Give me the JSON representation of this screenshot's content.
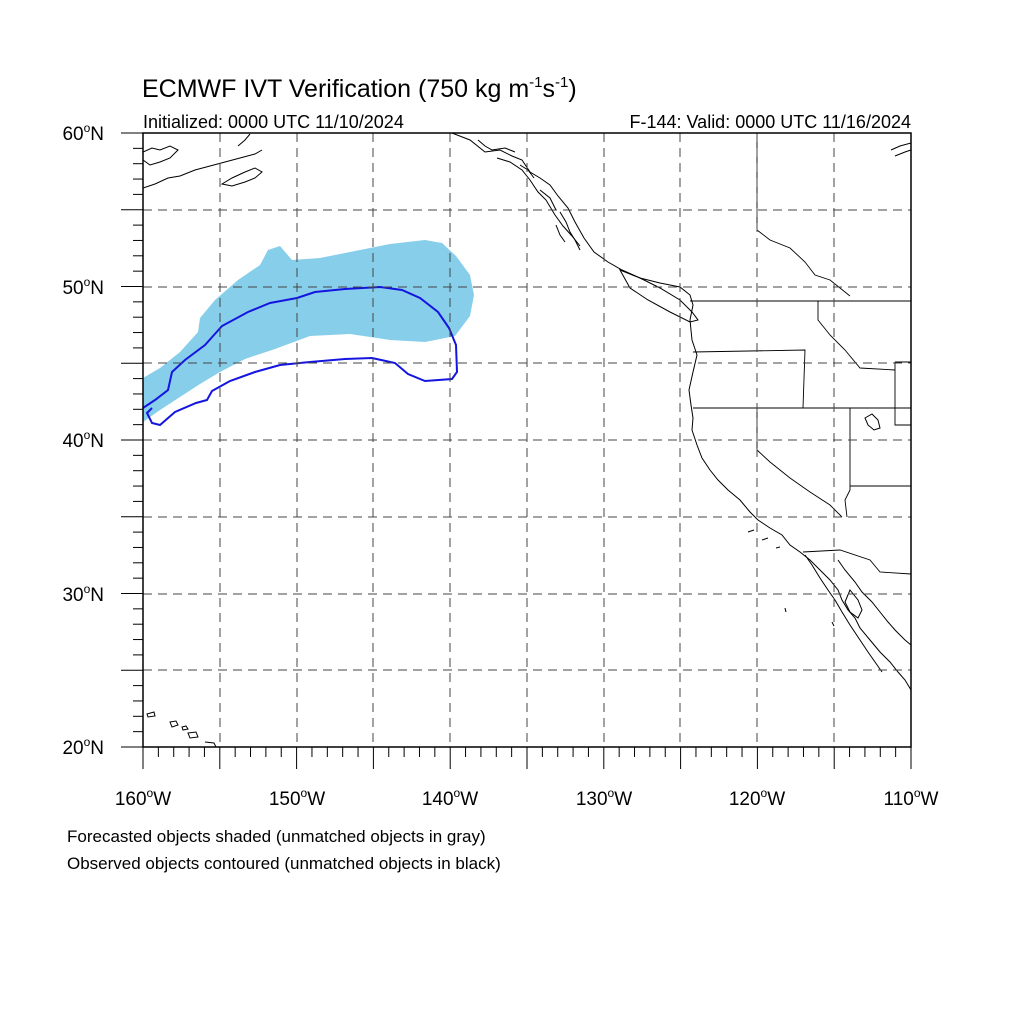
{
  "map": {
    "title_main": "ECMWF IVT Verification (750 kg m",
    "title_sup1": "-1",
    "title_mid": "s",
    "title_sup2": "-1",
    "title_end": ")",
    "initialized": "Initialized: 0000 UTC 11/10/2024",
    "valid": "F-144: Valid: 0000 UTC 11/16/2024",
    "lat_range": [
      20,
      60
    ],
    "lon_range": [
      -160,
      -110
    ],
    "lat_labels": [
      {
        "deg": "20",
        "unit": "N",
        "value": 20
      },
      {
        "deg": "30",
        "unit": "N",
        "value": 30
      },
      {
        "deg": "40",
        "unit": "N",
        "value": 40
      },
      {
        "deg": "50",
        "unit": "N",
        "value": 50
      },
      {
        "deg": "60",
        "unit": "N",
        "value": 60
      }
    ],
    "lon_labels": [
      {
        "deg": "160",
        "unit": "W",
        "value": -160
      },
      {
        "deg": "150",
        "unit": "W",
        "value": -150
      },
      {
        "deg": "140",
        "unit": "W",
        "value": -140
      },
      {
        "deg": "130",
        "unit": "W",
        "value": -130
      },
      {
        "deg": "120",
        "unit": "W",
        "value": -120
      },
      {
        "deg": "110",
        "unit": "W",
        "value": -110
      }
    ],
    "footnote_1": "Forecasted objects shaded (unmatched objects in gray)",
    "footnote_2": "Observed objects contoured (unmatched objects in black)",
    "colors": {
      "forecast_fill": "#87ceeb",
      "observed_contour": "#1515e0",
      "grid": "#444444",
      "coast": "#000000"
    }
  }
}
